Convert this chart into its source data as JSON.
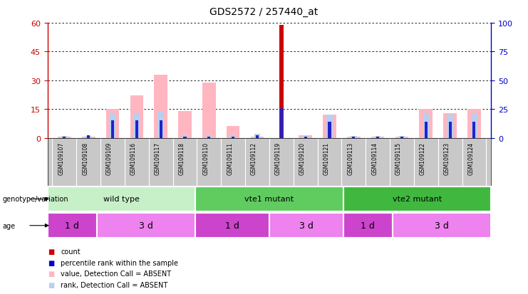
{
  "title": "GDS2572 / 257440_at",
  "samples": [
    "GSM109107",
    "GSM109108",
    "GSM109109",
    "GSM109116",
    "GSM109117",
    "GSM109118",
    "GSM109110",
    "GSM109111",
    "GSM109112",
    "GSM109119",
    "GSM109120",
    "GSM109121",
    "GSM109113",
    "GSM109114",
    "GSM109115",
    "GSM109122",
    "GSM109123",
    "GSM109124"
  ],
  "count_values": [
    0,
    0,
    0,
    0,
    0,
    0,
    0,
    0,
    0,
    59,
    0,
    0,
    0,
    0,
    0,
    0,
    0,
    0
  ],
  "rank_values": [
    1,
    2,
    15,
    15,
    15,
    1,
    1,
    1,
    2,
    26,
    1,
    14,
    1,
    1,
    1,
    14,
    14,
    14
  ],
  "pink_bar_values": [
    0.5,
    0.5,
    15,
    22,
    33,
    14,
    29,
    6,
    0.5,
    0,
    1.5,
    12,
    0.5,
    0.5,
    0.5,
    15,
    13,
    15
  ],
  "light_blue_values": [
    1,
    1,
    13,
    13,
    14,
    1,
    1,
    1,
    2,
    0,
    1,
    12,
    1,
    1,
    1,
    13,
    12,
    13
  ],
  "ylim_left": [
    0,
    60
  ],
  "ylim_right": [
    0,
    100
  ],
  "yticks_left": [
    0,
    15,
    30,
    45,
    60
  ],
  "yticks_right": [
    0,
    25,
    50,
    75,
    100
  ],
  "genotype_groups": [
    {
      "label": "wild type",
      "start": 0,
      "end": 6,
      "color": "#c8f0c8"
    },
    {
      "label": "vte1 mutant",
      "start": 6,
      "end": 12,
      "color": "#60cc60"
    },
    {
      "label": "vte2 mutant",
      "start": 12,
      "end": 18,
      "color": "#40b840"
    }
  ],
  "age_groups": [
    {
      "label": "1 d",
      "start": 0,
      "end": 2,
      "color": "#cc44cc"
    },
    {
      "label": "3 d",
      "start": 2,
      "end": 6,
      "color": "#ee82ee"
    },
    {
      "label": "1 d",
      "start": 6,
      "end": 9,
      "color": "#cc44cc"
    },
    {
      "label": "3 d",
      "start": 9,
      "end": 12,
      "color": "#ee82ee"
    },
    {
      "label": "1 d",
      "start": 12,
      "end": 14,
      "color": "#cc44cc"
    },
    {
      "label": "3 d",
      "start": 14,
      "end": 18,
      "color": "#ee82ee"
    }
  ],
  "legend_items": [
    {
      "color": "#cc0000",
      "label": "count"
    },
    {
      "color": "#0000cc",
      "label": "percentile rank within the sample"
    },
    {
      "color": "#ffb6c1",
      "label": "value, Detection Call = ABSENT"
    },
    {
      "color": "#b8d0f0",
      "label": "rank, Detection Call = ABSENT"
    }
  ],
  "count_color": "#cc0000",
  "rank_color": "#2222cc",
  "pink_color": "#ffb6c1",
  "lightblue_color": "#b8d0f0",
  "background_color": "#ffffff",
  "left_axis_color": "#cc0000",
  "right_axis_color": "#0000cc"
}
